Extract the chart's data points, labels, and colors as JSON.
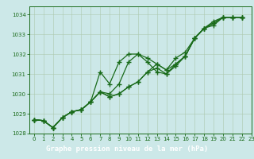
{
  "title": "Graphe pression niveau de la mer (hPa)",
  "bg_color": "#cce8e8",
  "plot_bg": "#cce8e8",
  "line_color": "#1a6b1a",
  "title_bg": "#2d6b2d",
  "title_fg": "#ffffff",
  "xlim": [
    -0.5,
    23
  ],
  "ylim": [
    1028.0,
    1034.4
  ],
  "yticks": [
    1028,
    1029,
    1030,
    1031,
    1032,
    1033,
    1034
  ],
  "xticks": [
    0,
    1,
    2,
    3,
    4,
    5,
    6,
    7,
    8,
    9,
    10,
    11,
    12,
    13,
    14,
    15,
    16,
    17,
    18,
    19,
    20,
    21,
    22,
    23
  ],
  "line1_x": [
    0,
    1,
    2,
    3,
    4,
    5,
    6,
    7,
    8,
    9,
    10,
    11,
    12,
    13,
    14,
    15,
    16,
    17,
    18,
    19,
    20,
    21,
    22
  ],
  "line1_y": [
    1028.7,
    1028.65,
    1028.3,
    1028.8,
    1029.1,
    1029.2,
    1029.6,
    1031.1,
    1030.5,
    1031.6,
    1032.0,
    1032.0,
    1031.6,
    1031.1,
    1031.0,
    1031.4,
    1031.9,
    1032.8,
    1033.3,
    1033.65,
    1033.85,
    1033.85,
    1033.85
  ],
  "line2_x": [
    0,
    1,
    2,
    3,
    4,
    5,
    6,
    7,
    8,
    9,
    10,
    11,
    12,
    13,
    14,
    15,
    16,
    17,
    18,
    19,
    20,
    21,
    22
  ],
  "line2_y": [
    1028.7,
    1028.65,
    1028.3,
    1028.8,
    1029.1,
    1029.2,
    1029.6,
    1030.1,
    1030.0,
    1030.5,
    1031.6,
    1032.0,
    1031.8,
    1031.5,
    1031.2,
    1031.5,
    1031.9,
    1032.8,
    1033.3,
    1033.45,
    1033.85,
    1033.85,
    1033.85
  ],
  "line3_x": [
    0,
    1,
    2,
    3,
    4,
    5,
    6,
    7,
    8,
    9,
    10,
    11,
    12,
    13,
    14,
    15,
    16,
    17,
    18,
    19,
    20,
    21,
    22
  ],
  "line3_y": [
    1028.7,
    1028.65,
    1028.3,
    1028.8,
    1029.1,
    1029.2,
    1029.6,
    1030.1,
    1029.85,
    1030.0,
    1030.35,
    1030.6,
    1031.1,
    1031.5,
    1031.2,
    1031.8,
    1032.1,
    1032.8,
    1033.3,
    1033.55,
    1033.85,
    1033.85,
    1033.85
  ],
  "line4_x": [
    0,
    1,
    2,
    3,
    4,
    5,
    6,
    7,
    8,
    9,
    10,
    11,
    12,
    13,
    14,
    15,
    16,
    17,
    18,
    19,
    20,
    21,
    22
  ],
  "line4_y": [
    1028.7,
    1028.65,
    1028.3,
    1028.8,
    1029.1,
    1029.2,
    1029.6,
    1030.1,
    1029.85,
    1030.0,
    1030.35,
    1030.6,
    1031.1,
    1031.3,
    1031.0,
    1031.5,
    1031.9,
    1032.8,
    1033.3,
    1033.55,
    1033.85,
    1033.85,
    1033.85
  ]
}
